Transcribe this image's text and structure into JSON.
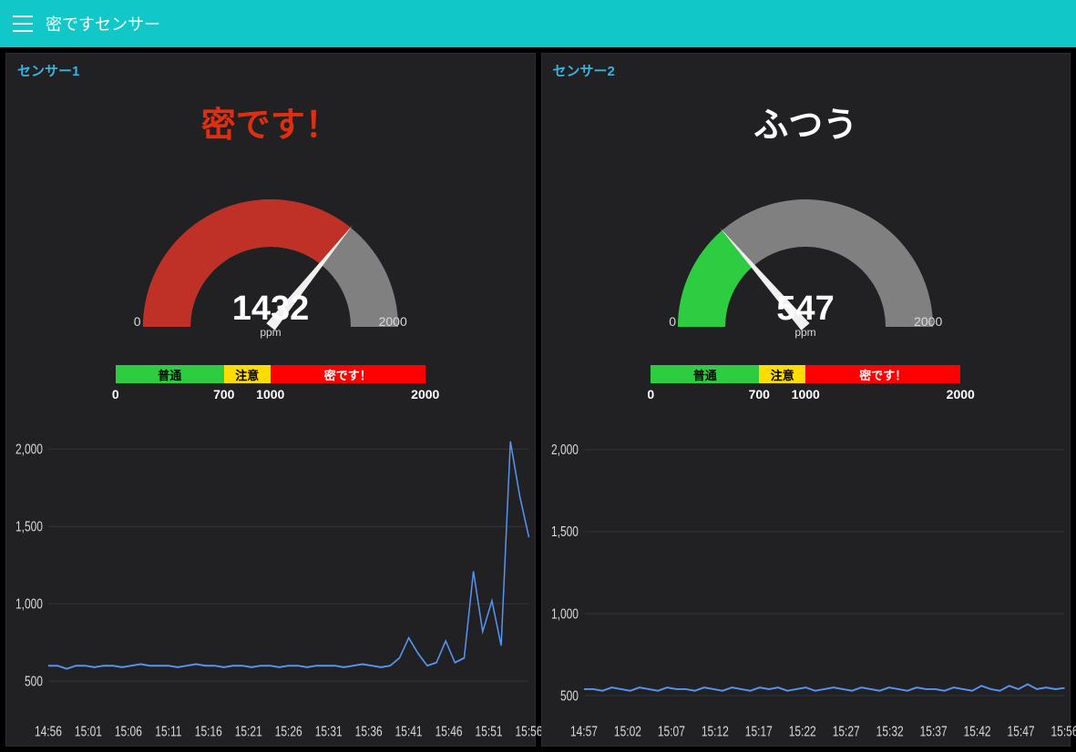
{
  "app": {
    "title": "密ですセンサー"
  },
  "panels": [
    {
      "title": "センサー1",
      "status_text": "密です！",
      "status_color": "#e02f10",
      "gauge": {
        "value": 1432,
        "unit": "ppm",
        "min": 0,
        "max": 2000,
        "fill_color": "#bf3027",
        "empty_color": "#808080",
        "needle_color": "#f0f0f0",
        "value_fontsize": 38,
        "tick_min_label": "0",
        "tick_max_label": "2000"
      },
      "thresholds": {
        "min": 0,
        "max": 2000,
        "segments": [
          {
            "label": "普通",
            "from": 0,
            "to": 700,
            "color": "#2ecc40"
          },
          {
            "label": "注意",
            "from": 700,
            "to": 1000,
            "color": "#ffdc00"
          },
          {
            "label": "密です！",
            "from": 1000,
            "to": 2000,
            "color": "#ff0000"
          }
        ],
        "tick_labels": [
          "0",
          "700",
          "1000",
          "2000"
        ]
      },
      "chart": {
        "type": "line",
        "ylim": [
          300,
          2050
        ],
        "yticks": [
          500,
          1000,
          1500,
          2000
        ],
        "ytick_labels": [
          "500",
          "1,000",
          "1,500",
          "2,000"
        ],
        "xtick_labels": [
          "14:56",
          "15:01",
          "15:06",
          "15:11",
          "15:16",
          "15:21",
          "15:26",
          "15:31",
          "15:36",
          "15:41",
          "15:46",
          "15:51",
          "15:56"
        ],
        "line_color": "#5794f2",
        "grid_color": "#2c3235",
        "background_color": "#212124",
        "yvalues": [
          600,
          600,
          580,
          600,
          600,
          590,
          600,
          600,
          590,
          600,
          610,
          600,
          600,
          600,
          590,
          600,
          610,
          600,
          600,
          590,
          600,
          600,
          590,
          600,
          600,
          590,
          600,
          600,
          590,
          600,
          600,
          600,
          590,
          600,
          610,
          600,
          590,
          600,
          650,
          780,
          680,
          600,
          620,
          760,
          620,
          650,
          1210,
          820,
          1020,
          730,
          2050,
          1700,
          1430
        ]
      }
    },
    {
      "title": "センサー2",
      "status_text": "ふつう",
      "status_color": "#ffffff",
      "gauge": {
        "value": 547,
        "unit": "ppm",
        "min": 0,
        "max": 2000,
        "fill_color": "#2ecc40",
        "empty_color": "#808080",
        "needle_color": "#f0f0f0",
        "value_fontsize": 38,
        "tick_min_label": "0",
        "tick_max_label": "2000"
      },
      "thresholds": {
        "min": 0,
        "max": 2000,
        "segments": [
          {
            "label": "普通",
            "from": 0,
            "to": 700,
            "color": "#2ecc40"
          },
          {
            "label": "注意",
            "from": 700,
            "to": 1000,
            "color": "#ffdc00"
          },
          {
            "label": "密です！",
            "from": 1000,
            "to": 2000,
            "color": "#ff0000"
          }
        ],
        "tick_labels": [
          "0",
          "700",
          "1000",
          "2000"
        ]
      },
      "chart": {
        "type": "line",
        "ylim": [
          400,
          2050
        ],
        "yticks": [
          500,
          1000,
          1500,
          2000
        ],
        "ytick_labels": [
          "500",
          "1,000",
          "1,500",
          "2,000"
        ],
        "xtick_labels": [
          "14:57",
          "15:02",
          "15:07",
          "15:12",
          "15:17",
          "15:22",
          "15:27",
          "15:32",
          "15:37",
          "15:42",
          "15:47",
          "15:56"
        ],
        "line_color": "#5794f2",
        "grid_color": "#2c3235",
        "background_color": "#212124",
        "yvalues": [
          540,
          540,
          530,
          550,
          540,
          530,
          550,
          540,
          530,
          550,
          540,
          540,
          530,
          550,
          540,
          530,
          550,
          540,
          530,
          550,
          540,
          550,
          530,
          540,
          550,
          530,
          540,
          550,
          540,
          530,
          550,
          540,
          530,
          550,
          540,
          530,
          550,
          540,
          540,
          530,
          550,
          540,
          530,
          560,
          540,
          530,
          560,
          540,
          570,
          540,
          550,
          540,
          547
        ]
      }
    }
  ]
}
